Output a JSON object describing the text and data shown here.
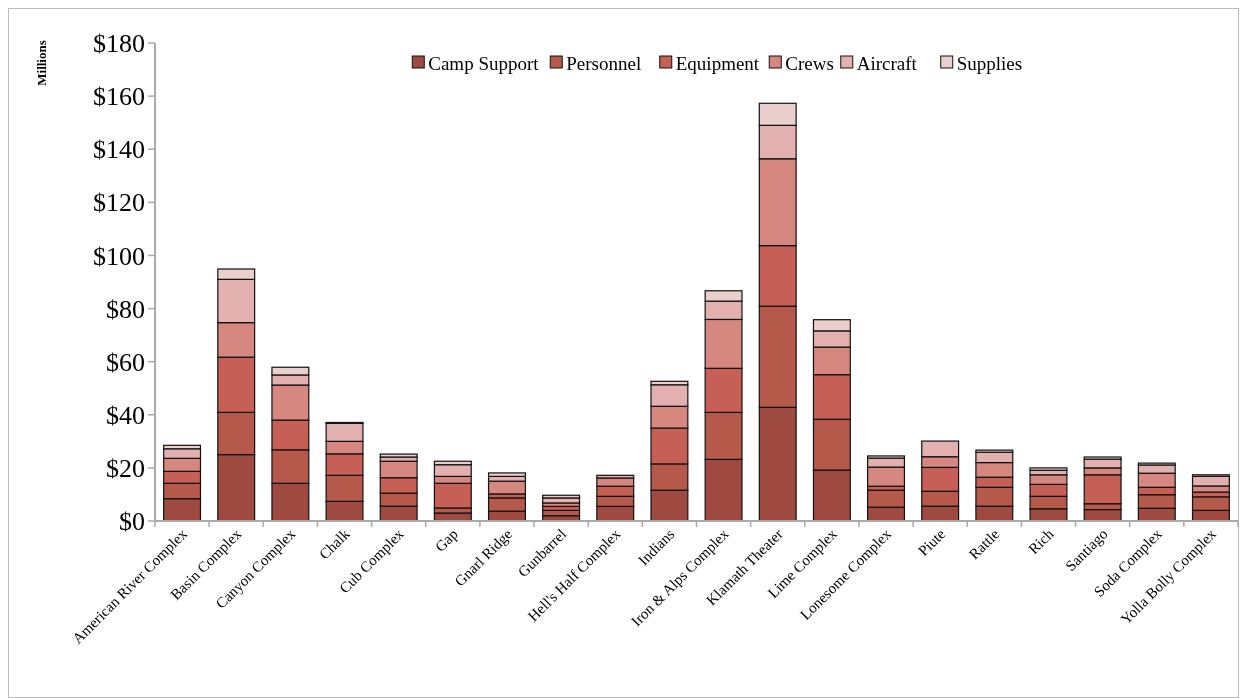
{
  "chart_data": {
    "type": "bar",
    "stacked": true,
    "ylabel": "Millions",
    "legend": "top",
    "grid": false,
    "categories": [
      "American River Complex",
      "Basin Complex",
      "Canyon Complex",
      "Chalk",
      "Cub Complex",
      "Gap",
      "Gnarl Ridge",
      "Gunbarrel",
      "Hell's Half Complex",
      "Indians",
      "Iron & Alps Complex",
      "Klamath Theater",
      "Lime Complex",
      "Lonesome Complex",
      "Piute",
      "Rattle",
      "Rich",
      "Santiago",
      "Soda Complex",
      "Yolla Bolly Complex"
    ],
    "series": [
      {
        "name": "Camp Support",
        "color": "#9e4a40",
        "values": [
          8.4,
          25,
          14.2,
          7.4,
          5.6,
          3,
          3.7,
          2,
          5.5,
          11.6,
          23.2,
          42.8,
          19.2,
          5.2,
          5.6,
          5.6,
          4.6,
          4.3,
          4.8,
          4
        ]
      },
      {
        "name": "Personnel",
        "color": "#b5594b",
        "values": [
          5.8,
          15.9,
          12.6,
          9.8,
          4.9,
          1.9,
          5,
          2,
          3.8,
          9.9,
          17.7,
          38.1,
          19.1,
          6.4,
          5.6,
          7.1,
          4.7,
          2.2,
          5.1,
          5.1
        ]
      },
      {
        "name": "Equipment",
        "color": "#c65f55",
        "values": [
          4.5,
          20.8,
          11.2,
          8.1,
          5.8,
          9.3,
          1.5,
          1.5,
          3.8,
          13.5,
          16.6,
          22.8,
          16.8,
          1.5,
          9,
          3.8,
          4.5,
          10.9,
          2.8,
          1.8
        ]
      },
      {
        "name": "Crews",
        "color": "#d68880",
        "values": [
          4.9,
          13,
          13.2,
          4.7,
          6.2,
          2.6,
          4.8,
          1.3,
          3.1,
          8.2,
          18.4,
          32.7,
          10.4,
          7.2,
          4,
          5.5,
          3.6,
          2.6,
          5.3,
          2.3
        ]
      },
      {
        "name": "Aircraft",
        "color": "#e2b0ae",
        "values": [
          3.6,
          16.3,
          3.8,
          6.8,
          1.6,
          4.4,
          1.8,
          1.9,
          1,
          8.1,
          6.9,
          12.6,
          6.1,
          3.4,
          5.9,
          3.9,
          1.7,
          3.3,
          3.1,
          3.6
        ]
      },
      {
        "name": "Supplies",
        "color": "#ebcfcc",
        "values": [
          1.3,
          3.9,
          2.9,
          0.3,
          1.1,
          1.3,
          1.3,
          1,
          null,
          1.3,
          3.9,
          8.3,
          4.2,
          0.8,
          0,
          0.8,
          0.9,
          0.8,
          0.7,
          0.6
        ]
      }
    ],
    "ylim": [
      0,
      180
    ],
    "yticks": [
      {
        "value": 0,
        "label": "$0"
      },
      {
        "value": 20,
        "label": "$20"
      },
      {
        "value": 40,
        "label": "$40"
      },
      {
        "value": 60,
        "label": "$60"
      },
      {
        "value": 80,
        "label": "$80"
      },
      {
        "value": 100,
        "label": "$100"
      },
      {
        "value": 120,
        "label": "$120"
      },
      {
        "value": 140,
        "label": "$140"
      },
      {
        "value": 160,
        "label": "$160"
      },
      {
        "value": 180,
        "label": "$180"
      }
    ]
  }
}
